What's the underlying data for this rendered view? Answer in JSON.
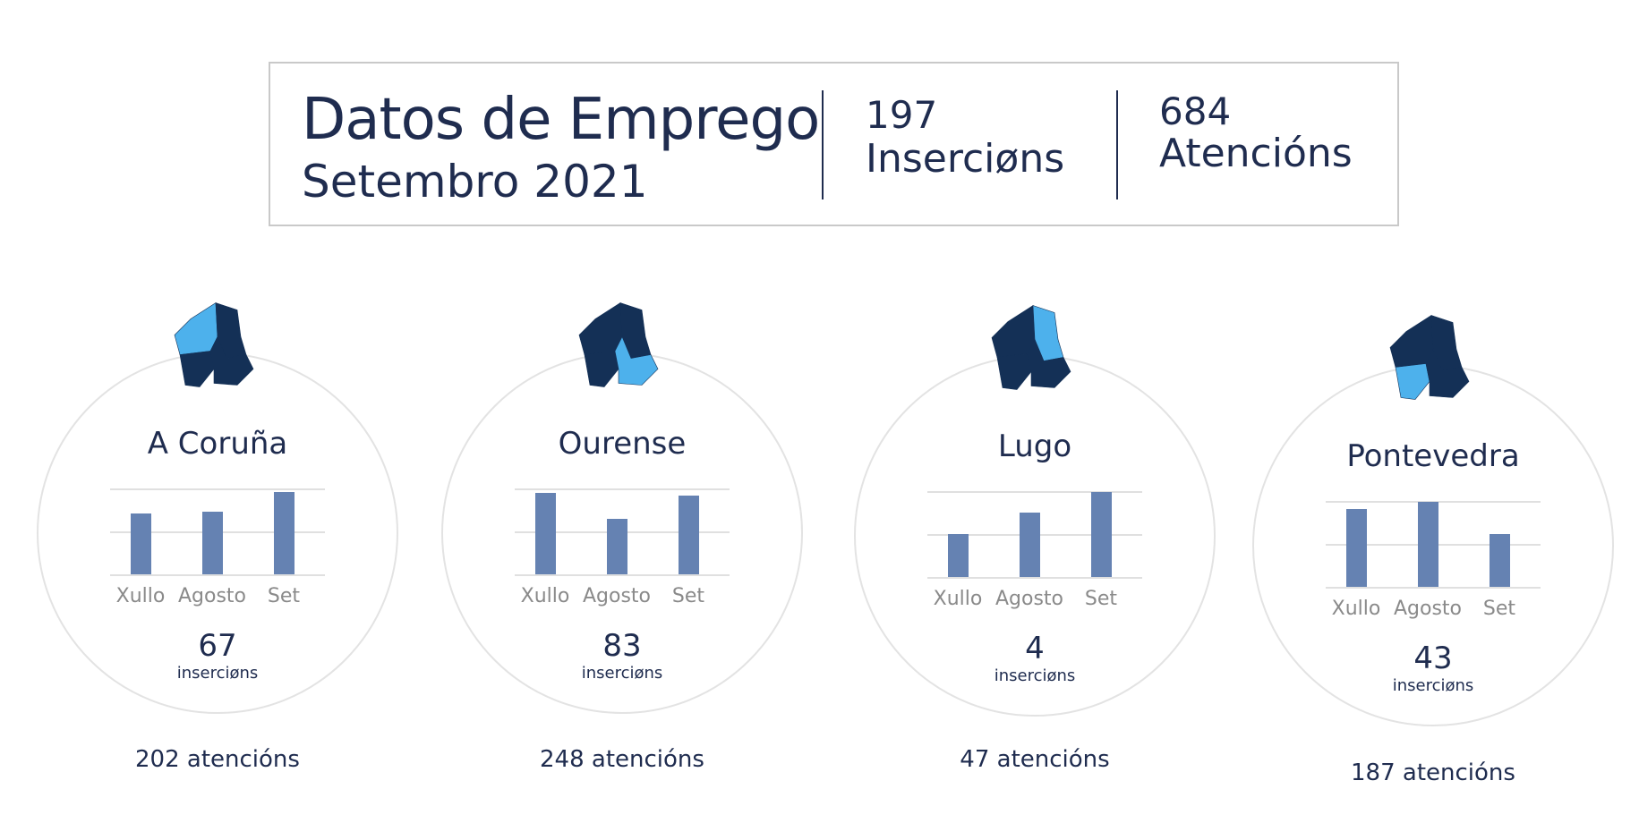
{
  "header": {
    "title": "Datos de Emprego",
    "subtitle": "Setembro 2021",
    "insercions_value": "197",
    "insercions_label": "Inserciøns",
    "atencions_value": "684",
    "atencions_label": "Atencións"
  },
  "colors": {
    "text": "#1f2c4f",
    "bar": "#6582b2",
    "map_dark": "#143056",
    "map_highlight": "#4db1ec"
  },
  "chart_data": [
    {
      "type": "bar",
      "title": "A Coruña",
      "categories": [
        "Xullo",
        "Agosto",
        "Set"
      ],
      "values": [
        0.71,
        0.73,
        0.96
      ],
      "ylim": [
        0,
        1
      ],
      "grid": true,
      "insercions": "67",
      "insercions_label": "inserciøns",
      "atencions": "202 atencións",
      "highlight": "coruna"
    },
    {
      "type": "bar",
      "title": "Ourense",
      "categories": [
        "Xullo",
        "Agosto",
        "Set"
      ],
      "values": [
        0.95,
        0.65,
        0.92
      ],
      "ylim": [
        0,
        1
      ],
      "grid": true,
      "insercions": "83",
      "insercions_label": "inserciøns",
      "atencions": "248 atencións",
      "highlight": "ourense"
    },
    {
      "type": "bar",
      "title": "Lugo",
      "categories": [
        "Xullo",
        "Agosto",
        "Set"
      ],
      "values": [
        0.5,
        0.75,
        0.99
      ],
      "ylim": [
        0,
        1
      ],
      "grid": true,
      "insercions": "4",
      "insercions_label": "inserciøns",
      "atencions": "47 atencións",
      "highlight": "lugo"
    },
    {
      "type": "bar",
      "title": "Pontevedra",
      "categories": [
        "Xullo",
        "Agosto",
        "Set"
      ],
      "values": [
        0.91,
        0.99,
        0.61
      ],
      "ylim": [
        0,
        1
      ],
      "grid": true,
      "insercions": "43",
      "insercions_label": "inserciøns",
      "atencions": "187 atencións",
      "highlight": "pontevedra"
    }
  ]
}
